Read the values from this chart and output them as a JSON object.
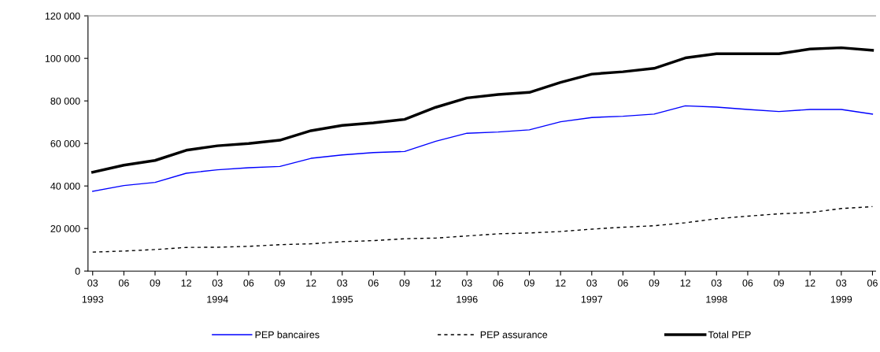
{
  "chart_data": {
    "type": "line",
    "categories": [
      "03\n1993",
      "06",
      "09",
      "12",
      "03\n1994",
      "06",
      "09",
      "12",
      "03\n1995",
      "06",
      "09",
      "12",
      "03\n1996",
      "06",
      "09",
      "12",
      "03\n1997",
      "06",
      "09",
      "12",
      "03\n1998",
      "06",
      "09",
      "12",
      "03\n1999",
      "06"
    ],
    "series": [
      {
        "name": "PEP bancaires",
        "color": "#0000ff",
        "line_style": "solid",
        "values": [
          37500,
          40200,
          41700,
          46000,
          47600,
          48600,
          49200,
          53000,
          54600,
          55700,
          56200,
          61000,
          64800,
          65400,
          66400,
          70200,
          72200,
          72800,
          73800,
          77700,
          77100,
          76000,
          75000,
          76000,
          76000,
          73800
        ]
      },
      {
        "name": "PEP assurance",
        "color": "#000000",
        "line_style": "dashed",
        "values": [
          8900,
          9400,
          10100,
          11100,
          11200,
          11600,
          12400,
          12800,
          13800,
          14300,
          15200,
          15500,
          16500,
          17500,
          17900,
          18600,
          19700,
          20600,
          21300,
          22700,
          24600,
          25800,
          26900,
          27500,
          29400,
          30300
        ]
      },
      {
        "name": "Total PEP",
        "color": "#000000",
        "line_style": "solid",
        "values": [
          46500,
          49800,
          52000,
          56800,
          58900,
          60000,
          61500,
          66000,
          68500,
          69700,
          71300,
          77000,
          81400,
          83000,
          84000,
          88700,
          92600,
          93700,
          95300,
          100200,
          102200,
          102200,
          102200,
          104400,
          105000,
          103800
        ]
      }
    ],
    "ylim": [
      0,
      120000
    ],
    "yticks": [
      0,
      {
        "value": 20000,
        "label": "20 000"
      },
      {
        "value": 40000,
        "label": "40 000"
      },
      {
        "value": 60000,
        "label": "60 000"
      },
      {
        "value": 80000,
        "label": "80 000"
      },
      {
        "value": 100000,
        "label": "100 000"
      },
      {
        "value": 120000,
        "label": "120 000"
      }
    ],
    "grid": false,
    "legend": "bottom",
    "marker": "none"
  }
}
